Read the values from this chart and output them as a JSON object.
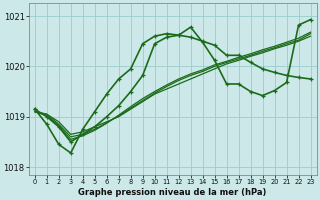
{
  "xlabel": "Graphe pression niveau de la mer (hPa)",
  "x_ticks": [
    0,
    1,
    2,
    3,
    4,
    5,
    6,
    7,
    8,
    9,
    10,
    11,
    12,
    13,
    14,
    15,
    16,
    17,
    18,
    19,
    20,
    21,
    22,
    23
  ],
  "ylim": [
    1017.85,
    1021.25
  ],
  "yticks": [
    1018,
    1019,
    1020,
    1021
  ],
  "bg_color": "#cce8e8",
  "grid_color": "#99cccc",
  "line_color": "#1a6b1a",
  "series": [
    {
      "x": [
        0,
        1,
        2,
        3,
        4,
        5,
        6,
        7,
        8,
        9,
        10,
        11,
        12,
        13,
        14,
        15,
        16,
        17,
        18,
        19,
        20,
        21,
        22,
        23
      ],
      "y": [
        1019.1,
        1019.05,
        1018.9,
        1018.65,
        1018.7,
        1018.8,
        1018.9,
        1019.0,
        1019.15,
        1019.3,
        1019.45,
        1019.55,
        1019.65,
        1019.75,
        1019.85,
        1019.95,
        1020.05,
        1020.12,
        1020.2,
        1020.27,
        1020.35,
        1020.42,
        1020.5,
        1020.6
      ],
      "marker": false,
      "lw": 0.9
    },
    {
      "x": [
        0,
        1,
        2,
        3,
        4,
        5,
        6,
        7,
        8,
        9,
        10,
        11,
        12,
        13,
        14,
        15,
        16,
        17,
        18,
        19,
        20,
        21,
        22,
        23
      ],
      "y": [
        1019.1,
        1019.05,
        1018.85,
        1018.6,
        1018.65,
        1018.75,
        1018.88,
        1019.02,
        1019.17,
        1019.32,
        1019.47,
        1019.6,
        1019.72,
        1019.82,
        1019.9,
        1020.0,
        1020.08,
        1020.15,
        1020.22,
        1020.3,
        1020.37,
        1020.45,
        1020.52,
        1020.65
      ],
      "marker": false,
      "lw": 0.9
    },
    {
      "x": [
        0,
        1,
        2,
        3,
        4,
        5,
        6,
        7,
        8,
        9,
        10,
        11,
        12,
        13,
        14,
        15,
        16,
        17,
        18,
        19,
        20,
        21,
        22,
        23
      ],
      "y": [
        1019.1,
        1019.02,
        1018.82,
        1018.55,
        1018.62,
        1018.73,
        1018.87,
        1019.03,
        1019.2,
        1019.36,
        1019.5,
        1019.63,
        1019.75,
        1019.85,
        1019.93,
        1020.03,
        1020.1,
        1020.18,
        1020.25,
        1020.33,
        1020.4,
        1020.48,
        1020.56,
        1020.68
      ],
      "marker": false,
      "lw": 0.9
    },
    {
      "x": [
        0,
        1,
        2,
        3,
        4,
        5,
        6,
        7,
        8,
        9,
        10,
        11,
        12,
        13,
        14,
        15,
        16,
        17,
        18,
        19,
        20,
        21,
        22,
        23
      ],
      "y": [
        1019.15,
        1018.85,
        1018.45,
        1018.28,
        1018.75,
        1019.1,
        1019.45,
        1019.75,
        1019.95,
        1020.45,
        1020.6,
        1020.65,
        1020.62,
        1020.78,
        1020.48,
        1020.12,
        1019.65,
        1019.65,
        1019.5,
        1019.42,
        1019.52,
        1019.68,
        1020.82,
        1020.93
      ],
      "marker": true,
      "lw": 1.2
    },
    {
      "x": [
        0,
        1,
        2,
        3,
        4,
        5,
        6,
        7,
        8,
        9,
        10,
        11,
        12,
        13,
        14,
        15,
        16,
        17,
        18,
        19,
        20,
        21,
        22,
        23
      ],
      "y": [
        1019.15,
        1019.0,
        1018.8,
        1018.5,
        1018.65,
        1018.8,
        1019.0,
        1019.22,
        1019.5,
        1019.82,
        1020.45,
        1020.58,
        1020.62,
        1020.58,
        1020.5,
        1020.42,
        1020.22,
        1020.22,
        1020.08,
        1019.95,
        1019.88,
        1019.82,
        1019.78,
        1019.75
      ],
      "marker": true,
      "lw": 1.2
    }
  ]
}
